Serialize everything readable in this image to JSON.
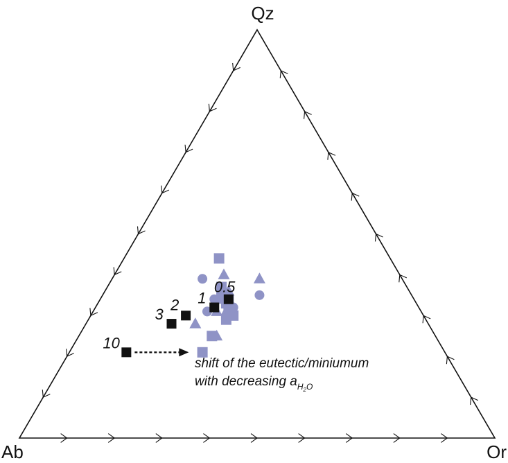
{
  "chart_data": {
    "type": "scatter",
    "subtype": "ternary",
    "title": "",
    "vertices": {
      "top": "Qz",
      "left": "Ab",
      "right": "Or"
    },
    "axis_directions": {
      "left_edge": "Ab to Qz",
      "right_edge": "Qz to Or",
      "bottom_edge": "Or to Ab"
    },
    "tick_divisions": 10,
    "grid": false,
    "colors": {
      "samples": "#8f93c6",
      "minimum": "#111111",
      "frame": "#111111"
    },
    "sample_series": [
      {
        "marker": "square",
        "color": "#8f93c6",
        "points": [
          {
            "Qz": 0.44,
            "Or": 0.2,
            "Ab": 0.36
          },
          {
            "Qz": 0.37,
            "Or": 0.24,
            "Ab": 0.39
          },
          {
            "Qz": 0.35,
            "Or": 0.25,
            "Ab": 0.4
          },
          {
            "Qz": 0.34,
            "Or": 0.27,
            "Ab": 0.39
          },
          {
            "Qz": 0.33,
            "Or": 0.27,
            "Ab": 0.4
          },
          {
            "Qz": 0.32,
            "Or": 0.28,
            "Ab": 0.4
          },
          {
            "Qz": 0.3,
            "Or": 0.3,
            "Ab": 0.4
          },
          {
            "Qz": 0.29,
            "Or": 0.29,
            "Ab": 0.42
          },
          {
            "Qz": 0.25,
            "Or": 0.28,
            "Ab": 0.47
          },
          {
            "Qz": 0.21,
            "Or": 0.28,
            "Ab": 0.51
          }
        ]
      },
      {
        "marker": "triangle",
        "color": "#8f93c6",
        "points": [
          {
            "Qz": 0.4,
            "Or": 0.23,
            "Ab": 0.37
          },
          {
            "Qz": 0.39,
            "Or": 0.31,
            "Ab": 0.3
          },
          {
            "Qz": 0.36,
            "Or": 0.26,
            "Ab": 0.38
          },
          {
            "Qz": 0.34,
            "Or": 0.25,
            "Ab": 0.41
          },
          {
            "Qz": 0.33,
            "Or": 0.28,
            "Ab": 0.39
          },
          {
            "Qz": 0.31,
            "Or": 0.26,
            "Ab": 0.43
          },
          {
            "Qz": 0.31,
            "Or": 0.28,
            "Ab": 0.41
          },
          {
            "Qz": 0.3,
            "Or": 0.29,
            "Ab": 0.41
          },
          {
            "Qz": 0.28,
            "Or": 0.23,
            "Ab": 0.49
          },
          {
            "Qz": 0.25,
            "Or": 0.29,
            "Ab": 0.46
          }
        ]
      },
      {
        "marker": "circle",
        "color": "#8f93c6",
        "points": [
          {
            "Qz": 0.39,
            "Or": 0.19,
            "Ab": 0.42
          },
          {
            "Qz": 0.35,
            "Or": 0.33,
            "Ab": 0.32
          },
          {
            "Qz": 0.34,
            "Or": 0.24,
            "Ab": 0.42
          },
          {
            "Qz": 0.32,
            "Or": 0.29,
            "Ab": 0.39
          },
          {
            "Qz": 0.31,
            "Or": 0.24,
            "Ab": 0.45
          }
        ]
      }
    ],
    "minimum_series": {
      "marker": "square",
      "color": "#111111",
      "points": [
        {
          "label": "0.5",
          "Qz": 0.34,
          "Or": 0.27,
          "Ab": 0.39
        },
        {
          "label": "1",
          "Qz": 0.32,
          "Or": 0.25,
          "Ab": 0.43
        },
        {
          "label": "2",
          "Qz": 0.3,
          "Or": 0.2,
          "Ab": 0.5
        },
        {
          "label": "3",
          "Qz": 0.28,
          "Or": 0.18,
          "Ab": 0.54
        },
        {
          "label": "10",
          "Qz": 0.21,
          "Or": 0.12,
          "Ab": 0.67
        }
      ]
    },
    "annotation": {
      "line1": "shift of the eutectic/miniumum",
      "line2_prefix": "with decreasing a",
      "line2_subscript": "H",
      "line2_subsubscript": "2",
      "line2_subscript_end": "O"
    }
  }
}
